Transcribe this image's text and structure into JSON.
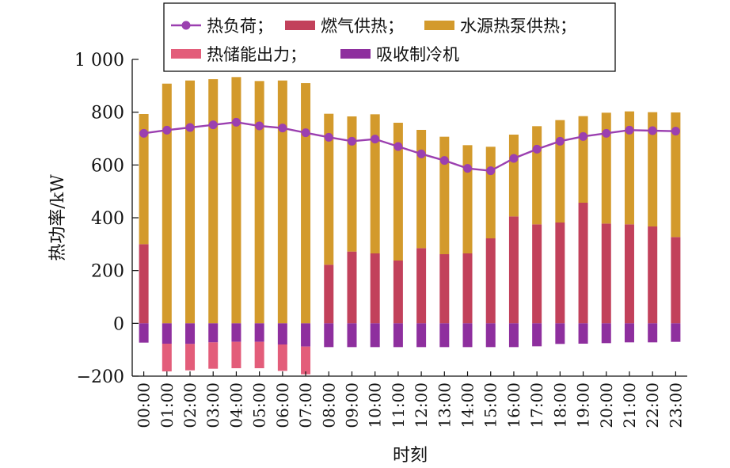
{
  "chart_data": {
    "type": "bar",
    "xlabel": "时刻",
    "ylabel": "热功率/kW",
    "ylim": [
      -200,
      1000
    ],
    "yticks": [
      -200,
      0,
      200,
      400,
      600,
      800,
      1000
    ],
    "ytick_labels": [
      "−200",
      "0",
      "200",
      "400",
      "600",
      "800",
      "1 000"
    ],
    "grid": false,
    "legend_position": "top",
    "categories": [
      "00:00",
      "01:00",
      "02:00",
      "03:00",
      "04:00",
      "05:00",
      "06:00",
      "07:00",
      "08:00",
      "09:00",
      "10:00",
      "11:00",
      "12:00",
      "13:00",
      "14:00",
      "15:00",
      "16:00",
      "17:00",
      "18:00",
      "19:00",
      "20:00",
      "21:00",
      "22:00",
      "23:00"
    ],
    "series": [
      {
        "name": "热负荷",
        "type": "line",
        "color": "#9b3fb0",
        "values": [
          720,
          732,
          742,
          752,
          762,
          748,
          740,
          722,
          705,
          690,
          698,
          670,
          642,
          617,
          587,
          578,
          625,
          660,
          690,
          708,
          720,
          732,
          730,
          728
        ]
      },
      {
        "name": "燃气供热",
        "type": "bar",
        "color": "#c2415b",
        "values": [
          300,
          0,
          0,
          0,
          0,
          0,
          0,
          0,
          222,
          272,
          265,
          238,
          285,
          262,
          265,
          322,
          405,
          375,
          382,
          457,
          378,
          375,
          367,
          327
        ]
      },
      {
        "name": "水源热泵供热",
        "type": "bar",
        "color": "#d39a2c",
        "values": [
          493,
          908,
          920,
          925,
          933,
          918,
          920,
          910,
          572,
          512,
          527,
          522,
          448,
          445,
          410,
          347,
          310,
          372,
          388,
          328,
          420,
          428,
          433,
          472
        ]
      },
      {
        "name": "热储能出力",
        "type": "bar",
        "color": "#e35d7a",
        "values": [
          0,
          -105,
          -100,
          -100,
          -100,
          -100,
          -100,
          -105,
          0,
          0,
          0,
          0,
          0,
          0,
          0,
          0,
          0,
          0,
          0,
          0,
          0,
          0,
          0,
          0
        ]
      },
      {
        "name": "吸收制冷机",
        "type": "bar",
        "color": "#8e2f9e",
        "values": [
          -73,
          -77,
          -78,
          -72,
          -70,
          -70,
          -80,
          -88,
          -90,
          -90,
          -90,
          -90,
          -90,
          -90,
          -90,
          -90,
          -90,
          -87,
          -78,
          -77,
          -75,
          -72,
          -72,
          -70
        ]
      }
    ],
    "legend_rows": [
      [
        {
          "label": "热负荷；",
          "series": 0
        },
        {
          "label": "燃气供热；",
          "series": 1
        },
        {
          "label": "水源热泵供热；",
          "series": 2
        }
      ],
      [
        {
          "label": "热储能出力；",
          "series": 3
        },
        {
          "label": "吸收制冷机",
          "series": 4
        }
      ]
    ]
  }
}
